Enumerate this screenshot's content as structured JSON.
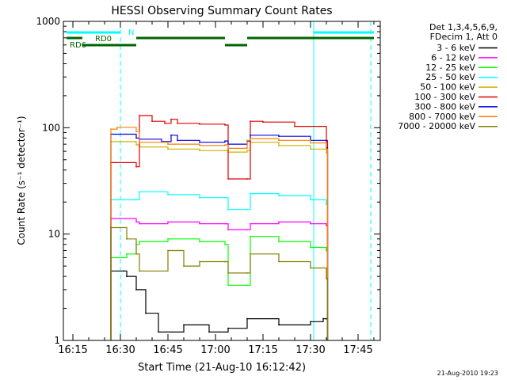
{
  "chart_data": {
    "type": "line",
    "title": "HESSI Observing Summary Count Rates",
    "xlabel": "Start Time (21-Aug-10 16:12:42)",
    "ylabel": "Count Rate (s⁻¹ detector⁻¹)",
    "x_range": [
      "16:12",
      "17:52"
    ],
    "x_ticks": [
      "16:15",
      "16:30",
      "16:45",
      "17:00",
      "17:15",
      "17:30",
      "17:45"
    ],
    "y_scale": "log",
    "ylim": [
      1,
      1000
    ],
    "y_ticks": [
      "1",
      "10",
      "100",
      "1000"
    ],
    "grid": false,
    "legend": {
      "placement": "outside-right",
      "header": [
        "Det 1,3,4,5,6,9,",
        "FDecim 1, Att 0"
      ],
      "entries": [
        {
          "label": "3 - 6 keV",
          "color": "#000000"
        },
        {
          "label": "6 - 12 keV",
          "color": "#ff00ff"
        },
        {
          "label": "12 - 25 keV",
          "color": "#00ff00"
        },
        {
          "label": "25 - 50 keV",
          "color": "#00ffff"
        },
        {
          "label": "50 - 100 keV",
          "color": "#d2b000"
        },
        {
          "label": "100 - 300 keV",
          "color": "#e00000"
        },
        {
          "label": "300 - 800 keV",
          "color": "#0000e0"
        },
        {
          "label": "800 - 7000 keV",
          "color": "#ff8000"
        },
        {
          "label": "7000 - 20000 keV",
          "color": "#808000"
        }
      ]
    },
    "series": [
      {
        "name": "3 - 6 keV",
        "color": "#000000",
        "x": [
          "16:27",
          "16:31",
          "16:32",
          "16:35",
          "16:38",
          "16:42",
          "16:50",
          "16:58",
          "17:04",
          "17:10",
          "17:20",
          "17:30",
          "17:34",
          "17:35"
        ],
        "y": [
          4.5,
          4.5,
          4,
          3,
          1.8,
          1.2,
          1.4,
          1.2,
          1.3,
          1.6,
          1.4,
          1.5,
          1.6,
          1.6
        ]
      },
      {
        "name": "6 - 12 keV",
        "color": "#ff00ff",
        "x": [
          "16:27",
          "16:35",
          "16:36",
          "16:45",
          "16:55",
          "17:03",
          "17:04",
          "17:10",
          "17:11",
          "17:20",
          "17:30",
          "17:35"
        ],
        "y": [
          14,
          13,
          12.5,
          13,
          12.5,
          12.5,
          11,
          11,
          12.5,
          13,
          12.5,
          12
        ]
      },
      {
        "name": "12 - 25 keV",
        "color": "#00ff00",
        "x": [
          "16:27",
          "16:32",
          "16:35",
          "16:36",
          "16:45",
          "16:55",
          "17:03",
          "17:04",
          "17:10",
          "17:11",
          "17:20",
          "17:30",
          "17:35"
        ],
        "y": [
          6,
          6.5,
          8,
          8.5,
          9,
          8.5,
          8,
          3.3,
          3.3,
          9.5,
          8.5,
          7.5,
          7
        ]
      },
      {
        "name": "25 - 50 keV",
        "color": "#00ffff",
        "x": [
          "16:27",
          "16:35",
          "16:36",
          "16:45",
          "16:55",
          "17:03",
          "17:04",
          "17:10",
          "17:11",
          "17:20",
          "17:30",
          "17:35"
        ],
        "y": [
          21,
          21,
          25,
          23.5,
          22,
          22,
          17,
          17,
          24,
          23,
          21,
          19
        ]
      },
      {
        "name": "50 - 100 keV",
        "color": "#d2b000",
        "x": [
          "16:27",
          "16:35",
          "16:36",
          "16:45",
          "16:55",
          "17:03",
          "17:04",
          "17:10",
          "17:11",
          "17:20",
          "17:30",
          "17:35"
        ],
        "y": [
          74,
          69,
          66,
          63,
          61,
          61,
          59,
          61,
          73,
          68,
          63,
          58
        ]
      },
      {
        "name": "100 - 300 keV",
        "color": "#e00000",
        "x": [
          "16:27",
          "16:35",
          "16:36",
          "16:40",
          "16:44",
          "16:46",
          "16:48",
          "16:55",
          "17:03",
          "17:04",
          "17:10",
          "17:11",
          "17:15",
          "17:25",
          "17:35"
        ],
        "y": [
          47,
          43,
          130,
          115,
          110,
          120,
          110,
          108,
          106,
          33,
          33,
          115,
          113,
          103,
          76
        ]
      },
      {
        "name": "300 - 800 keV",
        "color": "#0000e0",
        "x": [
          "16:27",
          "16:35",
          "16:36",
          "16:43",
          "16:46",
          "16:48",
          "16:55",
          "17:03",
          "17:04",
          "17:10",
          "17:11",
          "17:20",
          "17:30",
          "17:35"
        ],
        "y": [
          87,
          80,
          78,
          74,
          85,
          76,
          73,
          75,
          70,
          75,
          85,
          83,
          76,
          65
        ]
      },
      {
        "name": "800 - 7000 keV",
        "color": "#ff8000",
        "x": [
          "16:27",
          "16:29",
          "16:35",
          "16:36",
          "16:45",
          "16:55",
          "17:03",
          "17:04",
          "17:10",
          "17:11",
          "17:20",
          "17:30",
          "17:35"
        ],
        "y": [
          97,
          101,
          92,
          73,
          70,
          68,
          69,
          64,
          76,
          79,
          76,
          72,
          63
        ]
      },
      {
        "name": "7000 - 20000 keV",
        "color": "#808000",
        "x": [
          "16:27",
          "16:32",
          "16:35",
          "16:36",
          "16:45",
          "16:50",
          "16:55",
          "17:03",
          "17:04",
          "17:10",
          "17:11",
          "17:20",
          "17:30",
          "17:35"
        ],
        "y": [
          11.5,
          9,
          6.5,
          4.5,
          7,
          5,
          5.5,
          5.5,
          4.3,
          4.3,
          6.5,
          5.5,
          4.8,
          3.8
        ]
      }
    ],
    "flags": [
      {
        "label": "N",
        "color": "#00ffff",
        "segments": [
          [
            "16:13",
            "16:30"
          ],
          [
            "17:31",
            "17:50"
          ]
        ]
      },
      {
        "label": "RD0",
        "color": "#006400",
        "segments": [
          [
            "16:13",
            "16:18"
          ],
          [
            "16:35",
            "17:03"
          ],
          [
            "17:10",
            "17:50"
          ]
        ]
      },
      {
        "label": "RD6",
        "color": "#006400",
        "segments": [
          [
            "16:18",
            "16:35"
          ],
          [
            "17:03",
            "17:10"
          ]
        ]
      }
    ],
    "markers": [
      {
        "color": "#00ffff",
        "style": "solid",
        "x": "16:12"
      },
      {
        "color": "#00ffff",
        "style": "dashed",
        "x": "16:30"
      },
      {
        "color": "#00ffff",
        "style": "solid",
        "x": "17:31"
      },
      {
        "color": "#00ffff",
        "style": "dashed",
        "x": "17:49"
      }
    ],
    "footer_timestamp": "21-Aug-2010 19:23"
  }
}
